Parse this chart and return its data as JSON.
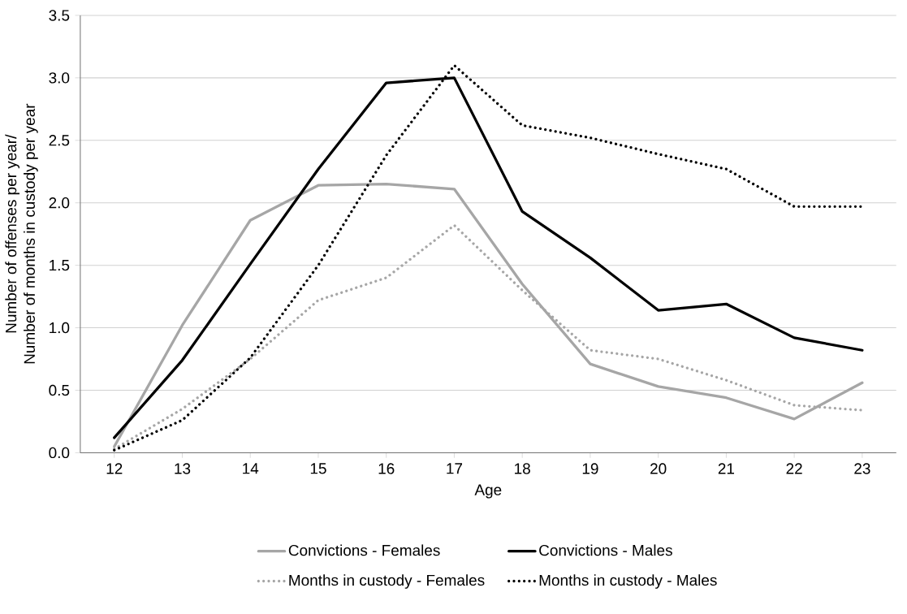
{
  "chart_data": {
    "type": "line",
    "xlabel": "Age",
    "ylabel": "Number of offenses per year/\nNumber of months in custody per year",
    "categories": [
      "12",
      "13",
      "14",
      "15",
      "16",
      "17",
      "18",
      "19",
      "20",
      "21",
      "22",
      "23"
    ],
    "series": [
      {
        "name": "Convictions - Females",
        "color": "#a6a6a6",
        "line_style": "solid",
        "values": [
          0.05,
          1.02,
          1.86,
          2.14,
          2.15,
          2.11,
          1.35,
          0.71,
          0.53,
          0.44,
          0.27,
          0.56
        ]
      },
      {
        "name": "Convictions - Males",
        "color": "#000000",
        "line_style": "solid",
        "values": [
          0.12,
          0.74,
          1.51,
          2.27,
          2.96,
          3.0,
          1.93,
          1.56,
          1.14,
          1.19,
          0.92,
          0.82
        ]
      },
      {
        "name": "Months in custody - Females",
        "color": "#a6a6a6",
        "line_style": "dotted",
        "values": [
          0.03,
          0.35,
          0.75,
          1.22,
          1.4,
          1.82,
          1.3,
          0.82,
          0.75,
          0.58,
          0.38,
          0.34
        ]
      },
      {
        "name": "Months in custody - Males",
        "color": "#000000",
        "line_style": "dotted",
        "values": [
          0.02,
          0.26,
          0.76,
          1.5,
          2.38,
          3.1,
          2.62,
          2.52,
          2.39,
          2.27,
          1.97,
          1.97
        ]
      }
    ],
    "ylim": [
      0,
      3.5
    ],
    "yticks": [
      {
        "value": 0,
        "label": "0.0"
      },
      0.5,
      {
        "value": 1,
        "label": "1.0"
      },
      1.5,
      {
        "value": 2,
        "label": "2.0"
      },
      2.5,
      {
        "value": 3,
        "label": "3.0"
      },
      3.5
    ],
    "grid": "y",
    "legend": "bottom"
  }
}
